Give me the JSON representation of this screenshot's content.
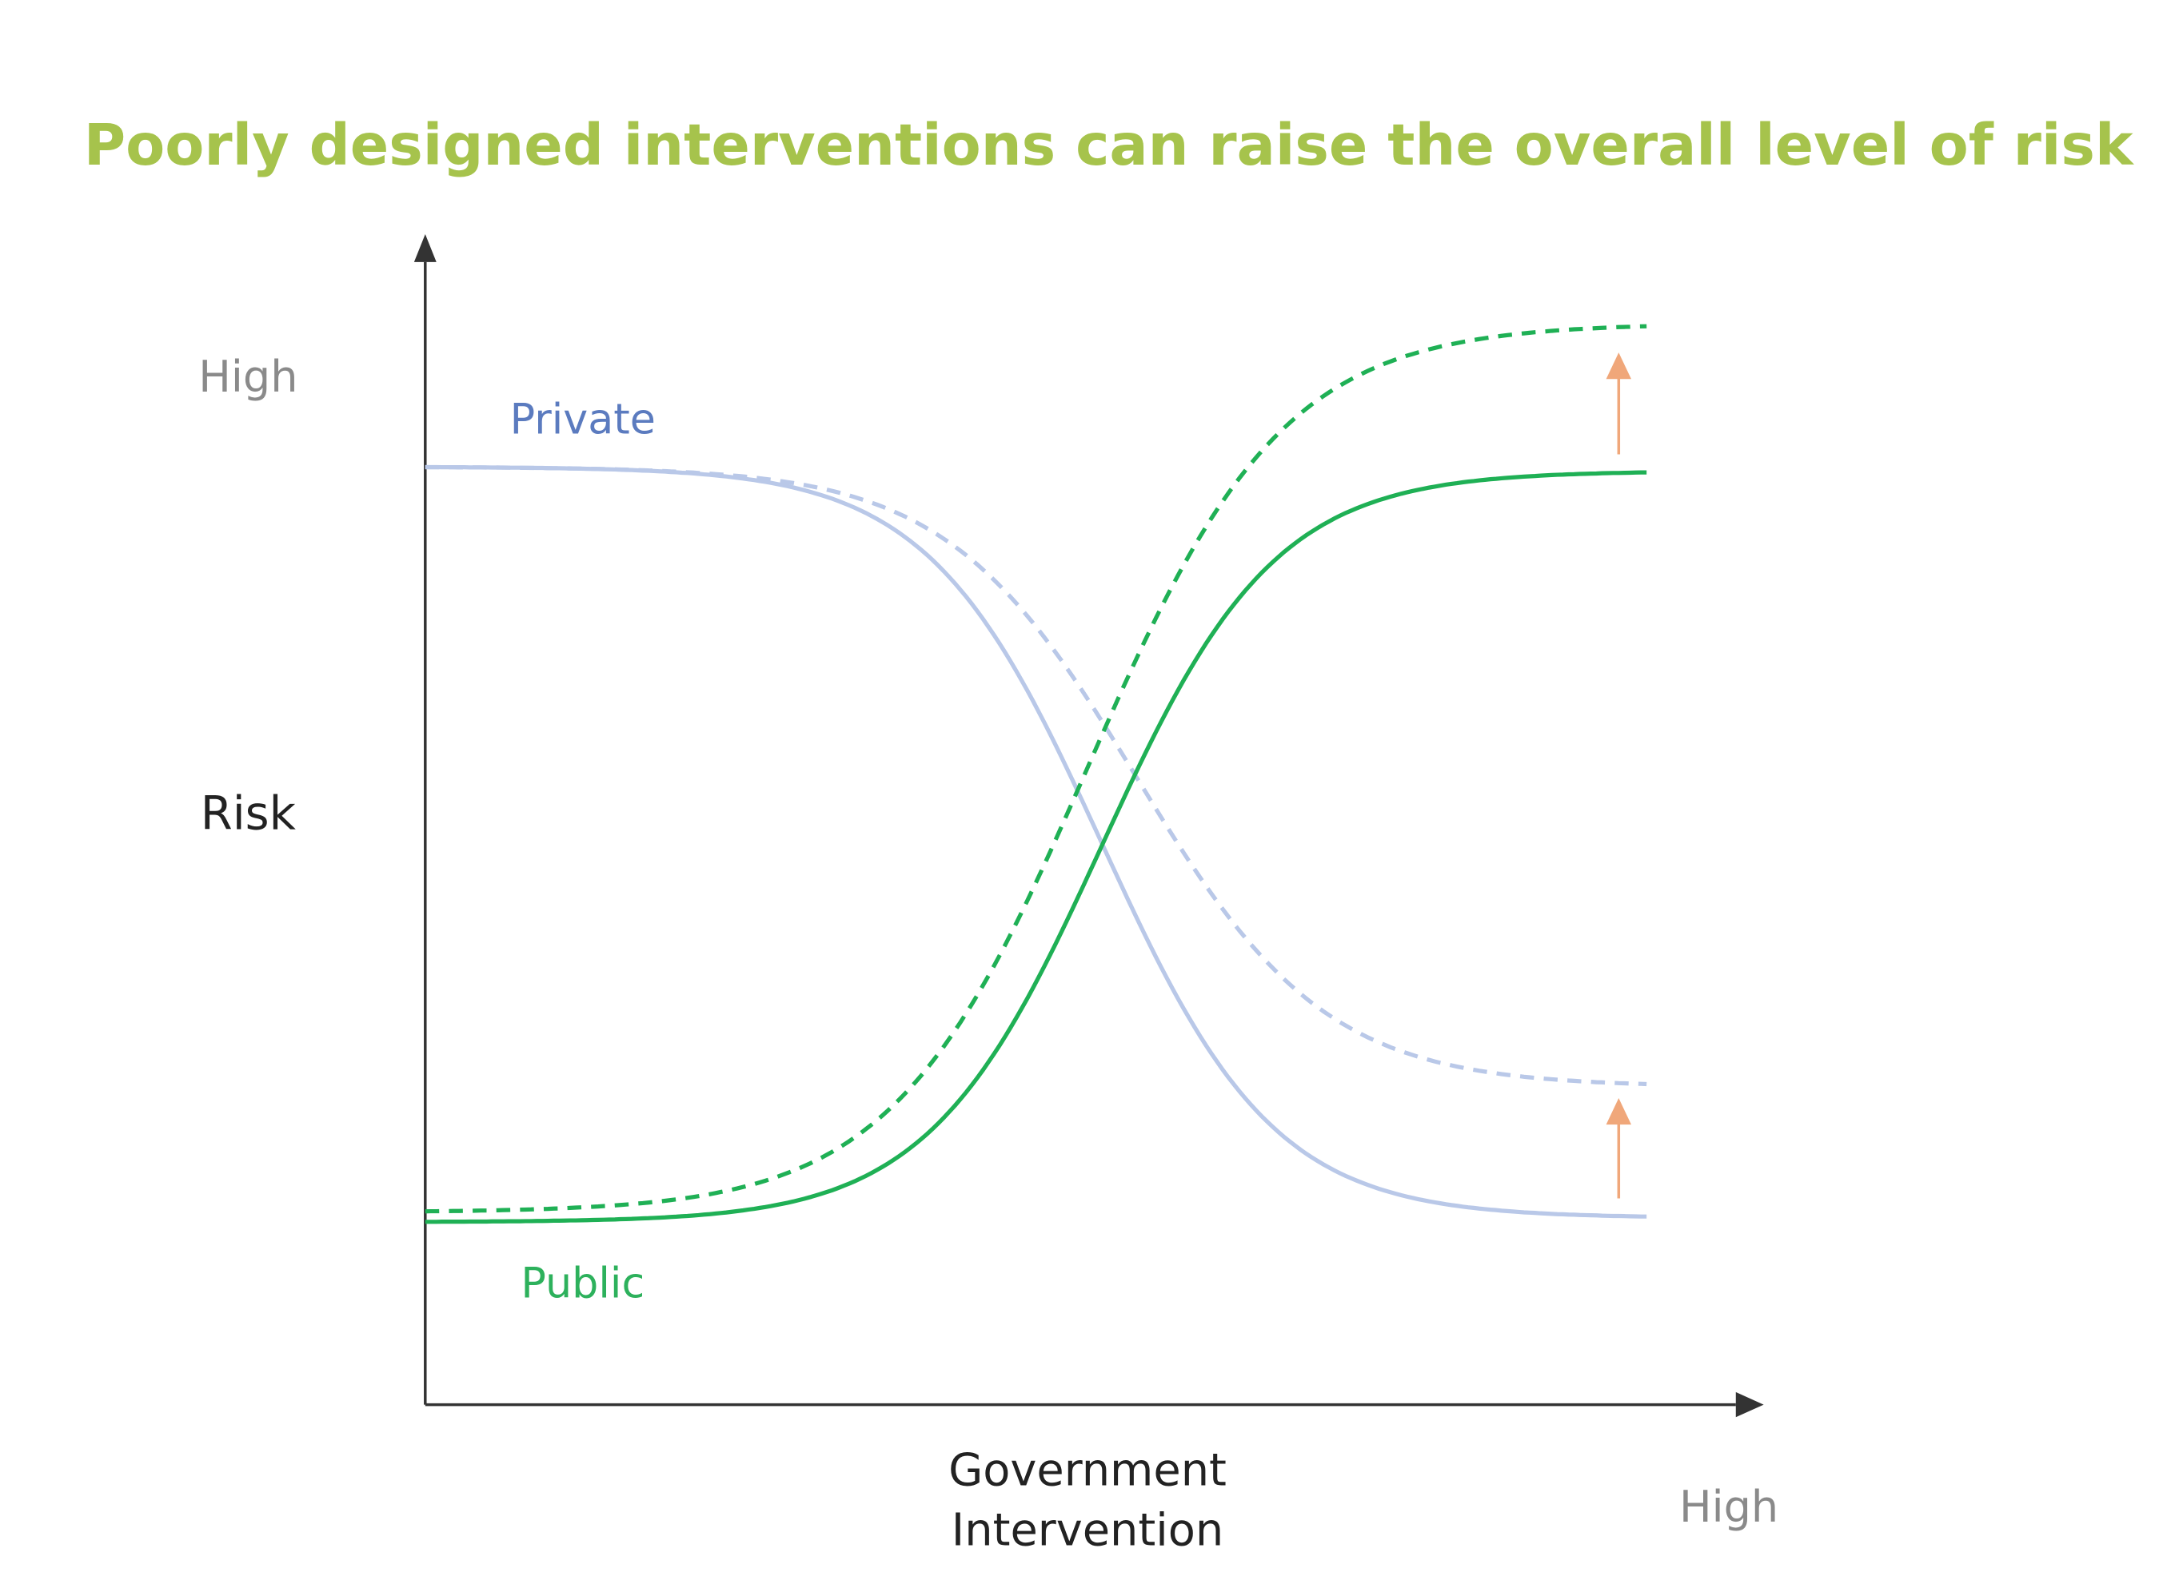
{
  "title": "Poorly designed interventions can raise the overall level of risk",
  "y_axis": {
    "label": "Risk",
    "high_label": "High"
  },
  "x_axis": {
    "label_lines": [
      "Government",
      "Intervention"
    ],
    "high_label": "High"
  },
  "curves": {
    "private": "Private",
    "public": "Public"
  }
}
